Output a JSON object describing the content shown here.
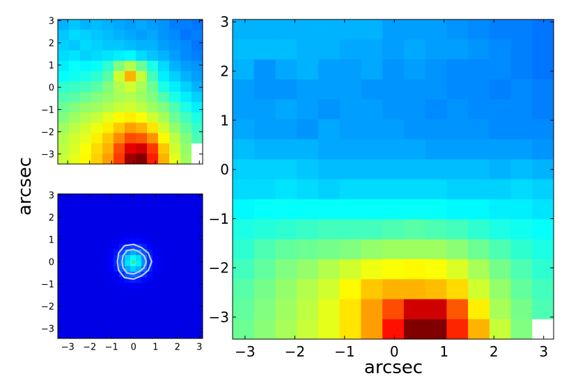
{
  "figure": {
    "shared_ylabel": "arcsec",
    "main_xlabel": "arcsec"
  },
  "chart_data": [
    {
      "type": "heatmap",
      "panel": "top-left",
      "colormap": "jet",
      "extent": [
        -3.45,
        3.15,
        -3.45,
        3.05
      ],
      "yticks": [
        -3,
        -2,
        -1,
        0,
        1,
        2,
        3
      ],
      "ytick_labels": [
        "−3",
        "−2",
        "−1",
        "0",
        "1",
        "2",
        "3"
      ],
      "xticks_visible": false,
      "grid": false,
      "cells": [
        [
          0.3,
          0.32,
          0.3,
          0.31,
          0.3,
          0.29,
          0.28,
          0.29,
          0.28,
          0.27,
          0.25,
          0.25,
          0.24
        ],
        [
          0.32,
          0.34,
          0.33,
          0.32,
          0.31,
          0.3,
          0.29,
          0.28,
          0.29,
          0.27,
          0.26,
          0.24,
          0.25
        ],
        [
          0.33,
          0.32,
          0.34,
          0.33,
          0.32,
          0.32,
          0.31,
          0.3,
          0.3,
          0.28,
          0.27,
          0.26,
          0.24
        ],
        [
          0.34,
          0.35,
          0.33,
          0.34,
          0.35,
          0.36,
          0.37,
          0.34,
          0.32,
          0.3,
          0.28,
          0.26,
          0.25
        ],
        [
          0.36,
          0.38,
          0.37,
          0.38,
          0.42,
          0.5,
          0.55,
          0.48,
          0.4,
          0.34,
          0.3,
          0.28,
          0.27
        ],
        [
          0.38,
          0.39,
          0.4,
          0.42,
          0.46,
          0.58,
          0.7,
          0.57,
          0.44,
          0.36,
          0.33,
          0.3,
          0.28
        ],
        [
          0.42,
          0.43,
          0.44,
          0.46,
          0.5,
          0.55,
          0.58,
          0.54,
          0.48,
          0.4,
          0.36,
          0.33,
          0.3
        ],
        [
          0.45,
          0.46,
          0.48,
          0.5,
          0.52,
          0.54,
          0.55,
          0.53,
          0.5,
          0.45,
          0.4,
          0.36,
          0.33
        ],
        [
          0.48,
          0.5,
          0.52,
          0.53,
          0.55,
          0.57,
          0.58,
          0.56,
          0.53,
          0.5,
          0.45,
          0.4,
          0.36
        ],
        [
          0.5,
          0.53,
          0.55,
          0.57,
          0.6,
          0.63,
          0.64,
          0.62,
          0.58,
          0.54,
          0.48,
          0.44,
          0.4
        ],
        [
          0.53,
          0.56,
          0.58,
          0.61,
          0.64,
          0.68,
          0.72,
          0.7,
          0.65,
          0.58,
          0.52,
          0.47,
          0.43
        ],
        [
          0.55,
          0.58,
          0.6,
          0.64,
          0.68,
          0.74,
          0.8,
          0.79,
          0.73,
          0.63,
          0.56,
          0.5,
          0.45
        ],
        [
          0.56,
          0.59,
          0.62,
          0.66,
          0.7,
          0.8,
          0.9,
          0.92,
          0.82,
          0.68,
          0.58,
          0.52,
          null
        ],
        [
          0.57,
          0.6,
          0.63,
          0.67,
          0.72,
          0.82,
          0.97,
          1.0,
          0.85,
          0.7,
          0.6,
          0.53,
          null
        ]
      ]
    },
    {
      "type": "heatmap",
      "panel": "bottom-left",
      "colormap": "jet",
      "extent": [
        -3.45,
        3.15,
        -3.45,
        3.05
      ],
      "xticks": [
        -3,
        -2,
        -1,
        0,
        1,
        2,
        3
      ],
      "xtick_labels": [
        "−3",
        "−2",
        "−1",
        "0",
        "1",
        "2",
        "3"
      ],
      "yticks": [
        -3,
        -2,
        -1,
        0,
        1,
        2,
        3
      ],
      "ytick_labels": [
        "−3",
        "−2",
        "−1",
        "0",
        "1",
        "2",
        "3"
      ],
      "grid": false,
      "source": {
        "x": 0.0,
        "y": 0.0,
        "peak": 0.3,
        "sigma": 0.45
      },
      "contour_radii": [
        0.78,
        0.55
      ]
    },
    {
      "type": "heatmap",
      "panel": "right",
      "colormap": "jet",
      "extent": [
        -3.25,
        3.2,
        -3.45,
        3.05
      ],
      "xticks": [
        -3,
        -2,
        -1,
        0,
        1,
        2,
        3
      ],
      "xtick_labels": [
        "−3",
        "−2",
        "−1",
        "0",
        "1",
        "2",
        "3"
      ],
      "yticks": [
        -3,
        -2,
        -1,
        0,
        1,
        2,
        3
      ],
      "ytick_labels": [
        "−3",
        "−2",
        "−1",
        "0",
        "1",
        "2",
        "3"
      ],
      "xlabel": "arcsec",
      "grid": false,
      "cells": [
        [
          0.3,
          0.3,
          0.3,
          0.3,
          0.3,
          0.3,
          0.3,
          0.28,
          0.28,
          0.28,
          0.27,
          0.26,
          0.25,
          0.25,
          0.24
        ],
        [
          0.31,
          0.31,
          0.31,
          0.3,
          0.3,
          0.29,
          0.29,
          0.28,
          0.29,
          0.28,
          0.28,
          0.27,
          0.26,
          0.25,
          0.24
        ],
        [
          0.3,
          0.27,
          0.29,
          0.3,
          0.28,
          0.28,
          0.29,
          0.27,
          0.28,
          0.27,
          0.26,
          0.26,
          0.26,
          0.25,
          0.24
        ],
        [
          0.28,
          0.27,
          0.27,
          0.28,
          0.28,
          0.28,
          0.27,
          0.27,
          0.27,
          0.27,
          0.26,
          0.26,
          0.25,
          0.26,
          0.25
        ],
        [
          0.28,
          0.28,
          0.29,
          0.28,
          0.27,
          0.28,
          0.28,
          0.27,
          0.27,
          0.26,
          0.27,
          0.26,
          0.26,
          0.26,
          0.25
        ],
        [
          0.29,
          0.28,
          0.28,
          0.27,
          0.29,
          0.28,
          0.28,
          0.28,
          0.27,
          0.27,
          0.27,
          0.27,
          0.26,
          0.26,
          0.26
        ],
        [
          0.31,
          0.3,
          0.3,
          0.3,
          0.29,
          0.29,
          0.29,
          0.29,
          0.29,
          0.28,
          0.28,
          0.28,
          0.28,
          0.28,
          0.27
        ],
        [
          0.33,
          0.33,
          0.33,
          0.32,
          0.31,
          0.31,
          0.31,
          0.31,
          0.31,
          0.31,
          0.31,
          0.31,
          0.3,
          0.31,
          0.3
        ],
        [
          0.34,
          0.34,
          0.35,
          0.34,
          0.33,
          0.34,
          0.34,
          0.34,
          0.34,
          0.34,
          0.33,
          0.33,
          0.33,
          0.34,
          0.33
        ],
        [
          0.37,
          0.38,
          0.38,
          0.38,
          0.38,
          0.38,
          0.38,
          0.38,
          0.38,
          0.38,
          0.37,
          0.37,
          0.36,
          0.36,
          0.35
        ],
        [
          0.4,
          0.41,
          0.42,
          0.43,
          0.44,
          0.44,
          0.44,
          0.45,
          0.46,
          0.45,
          0.44,
          0.42,
          0.4,
          0.39,
          0.38
        ],
        [
          0.42,
          0.45,
          0.47,
          0.48,
          0.49,
          0.5,
          0.52,
          0.53,
          0.53,
          0.53,
          0.51,
          0.48,
          0.45,
          0.42,
          0.4
        ],
        [
          0.44,
          0.47,
          0.5,
          0.52,
          0.55,
          0.58,
          0.61,
          0.62,
          0.63,
          0.62,
          0.59,
          0.54,
          0.49,
          0.45,
          0.42
        ],
        [
          0.46,
          0.49,
          0.52,
          0.55,
          0.58,
          0.63,
          0.68,
          0.7,
          0.7,
          0.69,
          0.66,
          0.58,
          0.52,
          0.47,
          0.44
        ],
        [
          0.47,
          0.5,
          0.53,
          0.56,
          0.6,
          0.65,
          0.72,
          0.8,
          0.92,
          0.92,
          0.79,
          0.64,
          0.54,
          0.49,
          0.45
        ],
        [
          0.48,
          0.51,
          0.54,
          0.57,
          0.6,
          0.65,
          0.72,
          0.86,
          1.0,
          1.0,
          0.84,
          0.7,
          0.57,
          0.5,
          null
        ]
      ]
    }
  ]
}
